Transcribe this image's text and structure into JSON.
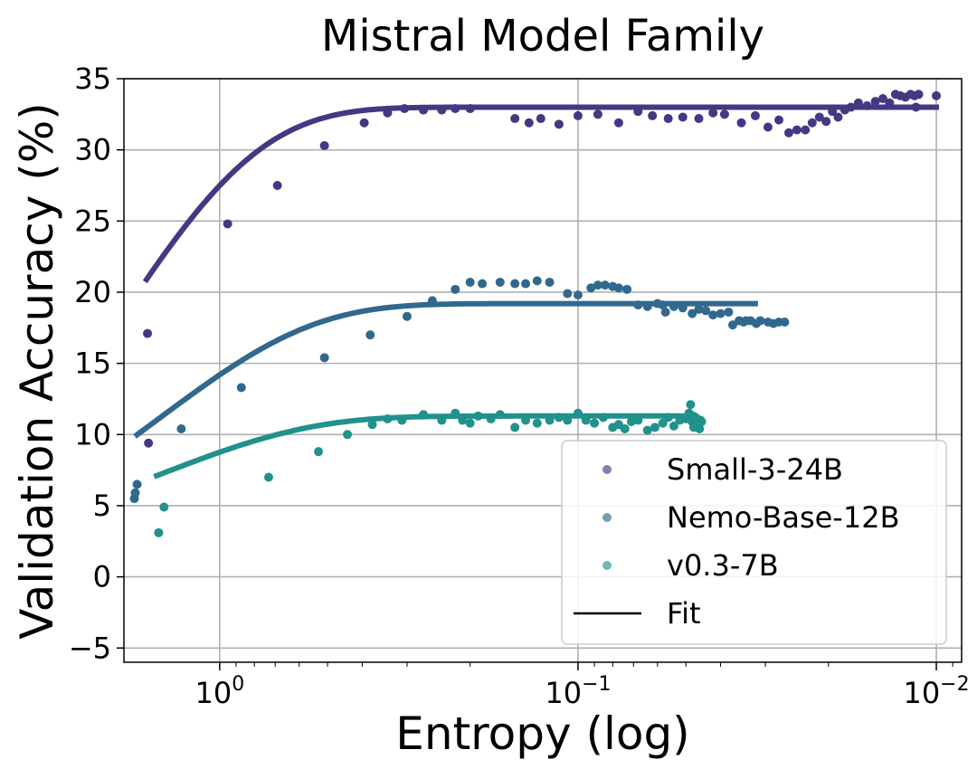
{
  "chart_data": {
    "type": "scatter",
    "title": "Mistral Model Family",
    "xlabel": "Entropy (log)",
    "ylabel": "Validation Accuracy (%)",
    "x_scale": "log",
    "x_reversed": true,
    "xlim": [
      1.85,
      0.0085
    ],
    "ylim": [
      -6,
      35
    ],
    "grid": true,
    "legend_position": "lower-right",
    "x_ticks": [
      {
        "value": 1,
        "base": "10",
        "exp": "0"
      },
      {
        "value": 0.1,
        "base": "10",
        "exp": "−1"
      },
      {
        "value": 0.01,
        "base": "10",
        "exp": "−2"
      }
    ],
    "y_ticks": [
      {
        "value": 35,
        "label": "35"
      },
      {
        "value": 30,
        "label": "30"
      },
      {
        "value": 25,
        "label": "25"
      },
      {
        "value": 20,
        "label": "20"
      },
      {
        "value": 15,
        "label": "15"
      },
      {
        "value": 10,
        "label": "10"
      },
      {
        "value": 5,
        "label": "5"
      },
      {
        "value": 0,
        "label": "0"
      },
      {
        "value": -5,
        "label": "−5"
      }
    ],
    "legend": [
      {
        "label": "Small-3-24B",
        "kind": "marker",
        "color": "#433983"
      },
      {
        "label": "Nemo-Base-12B",
        "kind": "marker",
        "color": "#31688e"
      },
      {
        "label": "v0.3-7B",
        "kind": "marker",
        "color": "#21918c"
      },
      {
        "label": "Fit",
        "kind": "line",
        "color": "#000000"
      }
    ],
    "series": [
      {
        "name": "Small-3-24B",
        "color": "#433983",
        "points": [
          [
            1.59,
            17.1
          ],
          [
            1.58,
            9.4
          ],
          [
            0.95,
            24.8
          ],
          [
            0.69,
            27.5
          ],
          [
            0.51,
            30.3
          ],
          [
            0.395,
            31.9
          ],
          [
            0.34,
            32.6
          ],
          [
            0.305,
            32.9
          ],
          [
            0.27,
            32.8
          ],
          [
            0.24,
            32.8
          ],
          [
            0.22,
            32.9
          ],
          [
            0.2,
            32.9
          ],
          [
            0.15,
            32.2
          ],
          [
            0.137,
            31.9
          ],
          [
            0.127,
            32.2
          ],
          [
            0.113,
            31.8
          ],
          [
            0.1,
            32.4
          ],
          [
            0.088,
            32.5
          ],
          [
            0.077,
            31.9
          ],
          [
            0.068,
            32.7
          ],
          [
            0.062,
            32.4
          ],
          [
            0.056,
            32.2
          ],
          [
            0.051,
            32.3
          ],
          [
            0.046,
            32.2
          ],
          [
            0.042,
            32.6
          ],
          [
            0.039,
            32.5
          ],
          [
            0.035,
            31.9
          ],
          [
            0.032,
            32.4
          ],
          [
            0.0295,
            31.6
          ],
          [
            0.0275,
            32.1
          ],
          [
            0.0258,
            31.2
          ],
          [
            0.0245,
            31.4
          ],
          [
            0.0232,
            31.4
          ],
          [
            0.0222,
            31.9
          ],
          [
            0.0212,
            32.3
          ],
          [
            0.0203,
            32.0
          ],
          [
            0.0195,
            32.7
          ],
          [
            0.0188,
            32.3
          ],
          [
            0.018,
            32.8
          ],
          [
            0.0173,
            33.0
          ],
          [
            0.0165,
            33.3
          ],
          [
            0.0156,
            33.1
          ],
          [
            0.0148,
            33.4
          ],
          [
            0.0141,
            33.6
          ],
          [
            0.0135,
            33.3
          ],
          [
            0.013,
            33.9
          ],
          [
            0.0126,
            33.8
          ],
          [
            0.0122,
            33.7
          ],
          [
            0.0118,
            33.9
          ],
          [
            0.0115,
            33.8
          ],
          [
            0.0112,
            33.9
          ],
          [
            0.0114,
            33.0
          ],
          [
            0.01,
            33.8
          ]
        ],
        "fit": {
          "y_inf": 33.0,
          "amp": 45.0,
          "k": 2.1,
          "x_start": 1.6,
          "x_end": 0.01
        }
      },
      {
        "name": "Nemo-Base-12B",
        "color": "#31688e",
        "points": [
          [
            1.73,
            5.5
          ],
          [
            1.72,
            5.9
          ],
          [
            1.7,
            6.5
          ],
          [
            1.28,
            10.4
          ],
          [
            0.87,
            13.3
          ],
          [
            0.51,
            15.4
          ],
          [
            0.38,
            17.0
          ],
          [
            0.3,
            18.3
          ],
          [
            0.255,
            19.4
          ],
          [
            0.22,
            20.2
          ],
          [
            0.2,
            20.7
          ],
          [
            0.185,
            20.6
          ],
          [
            0.165,
            20.7
          ],
          [
            0.15,
            20.6
          ],
          [
            0.14,
            20.6
          ],
          [
            0.13,
            20.8
          ],
          [
            0.12,
            20.7
          ],
          [
            0.107,
            19.9
          ],
          [
            0.1,
            19.8
          ],
          [
            0.092,
            20.3
          ],
          [
            0.088,
            20.5
          ],
          [
            0.084,
            20.5
          ],
          [
            0.08,
            20.4
          ],
          [
            0.077,
            20.3
          ],
          [
            0.073,
            20.2
          ],
          [
            0.068,
            19.1
          ],
          [
            0.064,
            19.0
          ],
          [
            0.06,
            19.2
          ],
          [
            0.057,
            18.6
          ],
          [
            0.054,
            19.0
          ],
          [
            0.051,
            18.9
          ],
          [
            0.048,
            18.5
          ],
          [
            0.046,
            18.8
          ],
          [
            0.044,
            18.7
          ],
          [
            0.042,
            18.4
          ],
          [
            0.04,
            18.5
          ],
          [
            0.038,
            18.6
          ],
          [
            0.037,
            17.7
          ],
          [
            0.0355,
            18.0
          ],
          [
            0.0345,
            17.9
          ],
          [
            0.034,
            18.0
          ],
          [
            0.033,
            18.0
          ],
          [
            0.0318,
            17.8
          ],
          [
            0.031,
            18.0
          ],
          [
            0.0295,
            17.9
          ],
          [
            0.0285,
            17.8
          ],
          [
            0.0275,
            17.9
          ],
          [
            0.0265,
            17.9
          ],
          [
            0.058,
            19.1
          ]
        ],
        "fit": {
          "y_inf": 19.2,
          "amp": 22.0,
          "k": 1.48,
          "x_start": 1.7,
          "x_end": 0.032
        }
      },
      {
        "name": "v0.3-7B",
        "color": "#21918c",
        "points": [
          [
            1.48,
            3.1
          ],
          [
            1.43,
            4.9
          ],
          [
            0.73,
            7.0
          ],
          [
            0.53,
            8.8
          ],
          [
            0.44,
            10.0
          ],
          [
            0.375,
            10.7
          ],
          [
            0.34,
            11.1
          ],
          [
            0.31,
            11.0
          ],
          [
            0.27,
            11.4
          ],
          [
            0.24,
            11.0
          ],
          [
            0.22,
            11.5
          ],
          [
            0.21,
            11.0
          ],
          [
            0.2,
            10.8
          ],
          [
            0.19,
            11.3
          ],
          [
            0.175,
            11.1
          ],
          [
            0.165,
            11.4
          ],
          [
            0.15,
            10.5
          ],
          [
            0.14,
            11.0
          ],
          [
            0.13,
            10.8
          ],
          [
            0.12,
            11.0
          ],
          [
            0.113,
            11.2
          ],
          [
            0.107,
            11.0
          ],
          [
            0.1,
            11.5
          ],
          [
            0.095,
            11.0
          ],
          [
            0.09,
            10.8
          ],
          [
            0.085,
            11.2
          ],
          [
            0.08,
            10.5
          ],
          [
            0.077,
            10.7
          ],
          [
            0.074,
            10.4
          ],
          [
            0.071,
            10.9
          ],
          [
            0.068,
            11.0
          ],
          [
            0.064,
            10.3
          ],
          [
            0.061,
            10.5
          ],
          [
            0.058,
            10.8
          ],
          [
            0.056,
            11.2
          ],
          [
            0.054,
            10.6
          ],
          [
            0.052,
            11.0
          ],
          [
            0.05,
            11.1
          ],
          [
            0.049,
            11.5
          ],
          [
            0.0485,
            12.1
          ],
          [
            0.048,
            10.9
          ],
          [
            0.0478,
            11.3
          ],
          [
            0.0475,
            10.5
          ],
          [
            0.047,
            10.8
          ],
          [
            0.0465,
            11.1
          ],
          [
            0.0462,
            10.7
          ],
          [
            0.046,
            11.0
          ],
          [
            0.0458,
            10.4
          ],
          [
            0.0455,
            11.0
          ],
          [
            0.0452,
            10.9
          ]
        ],
        "fit": {
          "y_inf": 11.3,
          "amp": 11.4,
          "k": 1.5,
          "x_start": 1.5,
          "x_end": 0.047
        }
      }
    ]
  }
}
